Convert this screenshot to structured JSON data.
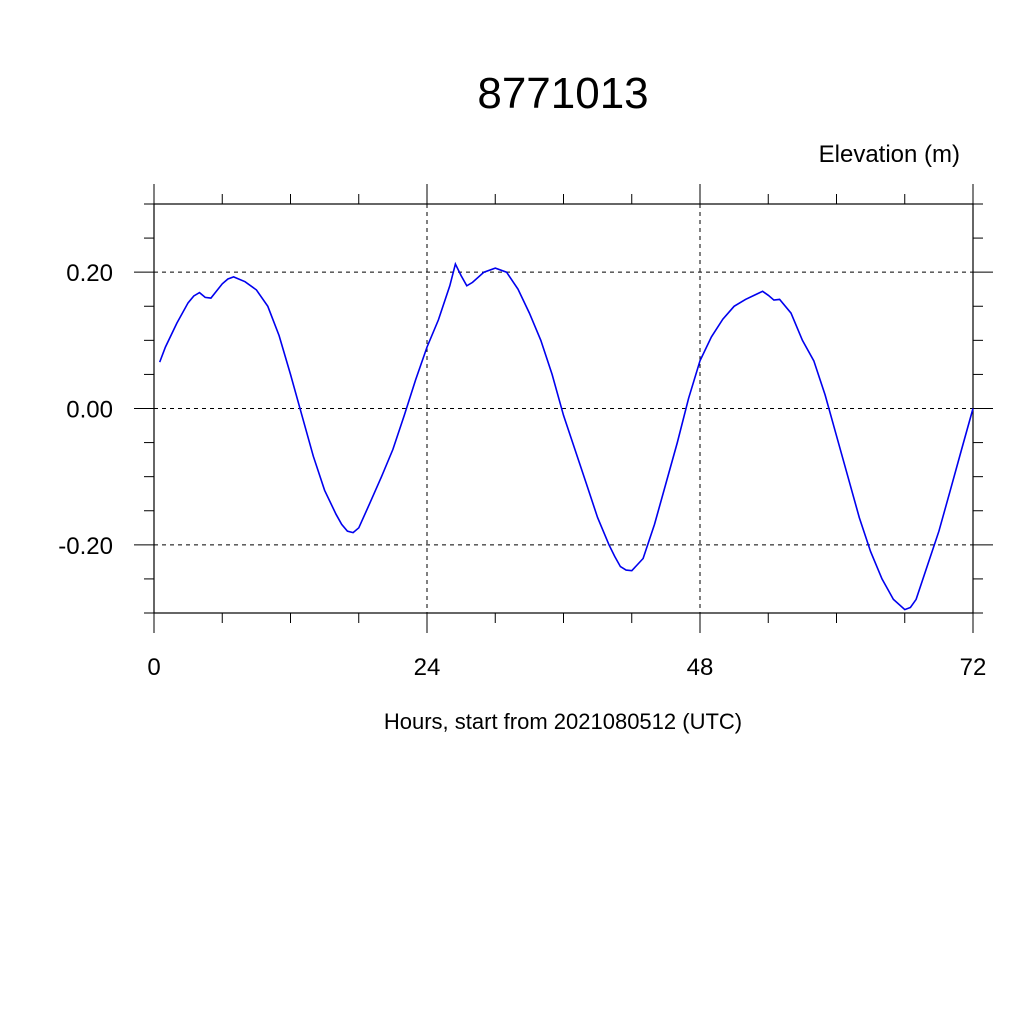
{
  "chart_data": {
    "type": "line",
    "title": "8771013",
    "ylabel": "Elevation (m)",
    "xlabel": "Hours, start from 2021080512 (UTC)",
    "xlim": [
      0,
      72
    ],
    "ylim": [
      -0.3,
      0.3
    ],
    "x_ticks": [
      0,
      24,
      48,
      72
    ],
    "x_tick_labels": [
      "0",
      "24",
      "48",
      "72"
    ],
    "y_ticks": [
      0.2,
      0.0,
      -0.2
    ],
    "y_tick_labels": [
      "0.20",
      "0.00",
      "-0.20"
    ],
    "grid": true,
    "series": [
      {
        "color": "#0000ee",
        "x": [
          0.5,
          1,
          2,
          3,
          3.5,
          4,
          4.5,
          5,
          6,
          6.5,
          7,
          8,
          9,
          10,
          11,
          12,
          13,
          14,
          15,
          16,
          16.5,
          17,
          17.5,
          18,
          19,
          20,
          21,
          22,
          23,
          24,
          25,
          26,
          26.5,
          27,
          27.5,
          28,
          29,
          30,
          31,
          32,
          33,
          34,
          35,
          36,
          37,
          38,
          39,
          40,
          40.5,
          41,
          41.5,
          42,
          43,
          44,
          45,
          46,
          47,
          48,
          49,
          50,
          51,
          52,
          53,
          53.5,
          54,
          54.5,
          55,
          56,
          57,
          58,
          59,
          60,
          61,
          62,
          63,
          64,
          65,
          66,
          66.5,
          67,
          68,
          69,
          70,
          71,
          72
        ],
        "y": [
          0.068,
          0.09,
          0.125,
          0.155,
          0.165,
          0.17,
          0.163,
          0.162,
          0.183,
          0.19,
          0.193,
          0.186,
          0.174,
          0.15,
          0.107,
          0.05,
          -0.01,
          -0.07,
          -0.12,
          -0.155,
          -0.17,
          -0.18,
          -0.182,
          -0.175,
          -0.138,
          -0.1,
          -0.06,
          -0.01,
          0.042,
          0.09,
          0.13,
          0.18,
          0.212,
          0.195,
          0.18,
          0.185,
          0.2,
          0.206,
          0.2,
          0.175,
          0.14,
          0.1,
          0.05,
          -0.01,
          -0.06,
          -0.11,
          -0.16,
          -0.2,
          -0.217,
          -0.232,
          -0.237,
          -0.238,
          -0.22,
          -0.17,
          -0.11,
          -0.05,
          0.015,
          0.07,
          0.105,
          0.131,
          0.15,
          0.16,
          0.168,
          0.172,
          0.166,
          0.159,
          0.16,
          0.14,
          0.1,
          0.07,
          0.02,
          -0.04,
          -0.1,
          -0.16,
          -0.21,
          -0.25,
          -0.28,
          -0.295,
          -0.292,
          -0.28,
          -0.23,
          -0.18,
          -0.12,
          -0.06,
          0.0
        ]
      }
    ]
  }
}
